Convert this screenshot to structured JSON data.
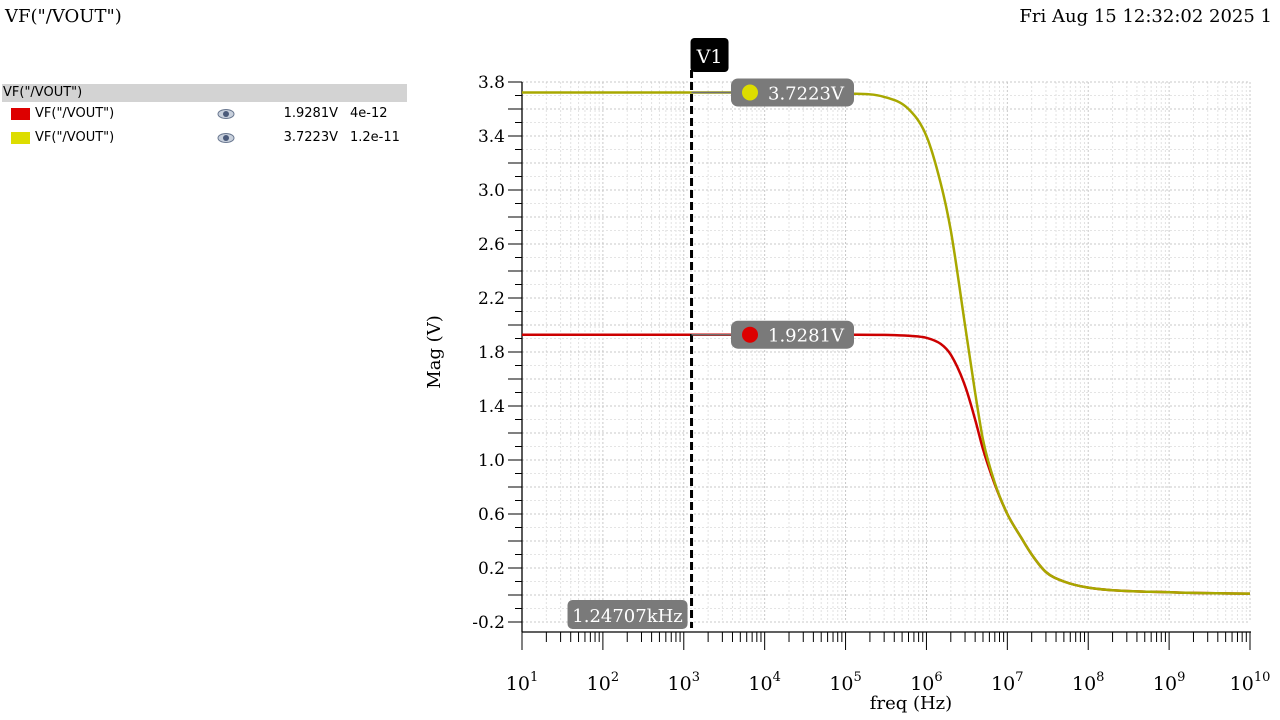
{
  "header": {
    "title": "VF(\"/VOUT\")",
    "datetime": "Fri Aug 15 12:32:02 2025  1"
  },
  "legend": {
    "header": "VF(\"/VOUT\")",
    "items": [
      {
        "name": "VF(\"/VOUT\")",
        "value": "1.9281V",
        "delta": "4e-12",
        "color": "#dd0000",
        "icon": "eye-icon"
      },
      {
        "name": "VF(\"/VOUT\")",
        "value": "3.7223V",
        "delta": "1.2e-11",
        "color": "#dddd00",
        "icon": "eye-icon"
      }
    ]
  },
  "cursor": {
    "label": "V1",
    "x_label": "1.24707kHz",
    "x": 1247.07
  },
  "markers": [
    {
      "label": "3.7223V",
      "series": 1,
      "y": 3.7223
    },
    {
      "label": "1.9281V",
      "series": 0,
      "y": 1.9281
    }
  ],
  "chart_data": {
    "type": "line",
    "xscale": "log",
    "xlabel": "freq (Hz)",
    "ylabel": "Mag (V)",
    "xlim": [
      10,
      10000000000
    ],
    "ylim": [
      -0.2,
      3.8
    ],
    "x_ticks": [
      "10^1",
      "10^2",
      "10^3",
      "10^4",
      "10^5",
      "10^6",
      "10^7",
      "10^8",
      "10^9",
      "10^10"
    ],
    "y_ticks": [
      "3.8",
      "3.4",
      "3.0",
      "2.6",
      "2.2",
      "1.8",
      "1.4",
      "1.0",
      "0.6",
      "0.2",
      "-0.2"
    ],
    "grid": true,
    "x": [
      10,
      100,
      1000,
      10000,
      100000,
      300000,
      600000,
      1000000,
      1500000,
      2000000,
      3000000,
      4000000,
      5000000,
      7000000,
      10000000,
      15000000,
      20000000,
      30000000,
      50000000,
      100000000,
      1000000000,
      10000000000
    ],
    "series": [
      {
        "color": "#cc0000",
        "values": [
          1.928,
          1.928,
          1.928,
          1.928,
          1.928,
          1.927,
          1.92,
          1.905,
          1.86,
          1.78,
          1.55,
          1.3,
          1.08,
          0.82,
          0.6,
          0.42,
          0.3,
          0.17,
          0.1,
          0.055,
          0.02,
          0.01
        ]
      },
      {
        "color": "#a8a800",
        "values": [
          3.722,
          3.722,
          3.722,
          3.722,
          3.715,
          3.69,
          3.6,
          3.4,
          3.05,
          2.7,
          2.0,
          1.5,
          1.15,
          0.83,
          0.6,
          0.42,
          0.3,
          0.17,
          0.1,
          0.055,
          0.02,
          0.01
        ]
      }
    ]
  }
}
